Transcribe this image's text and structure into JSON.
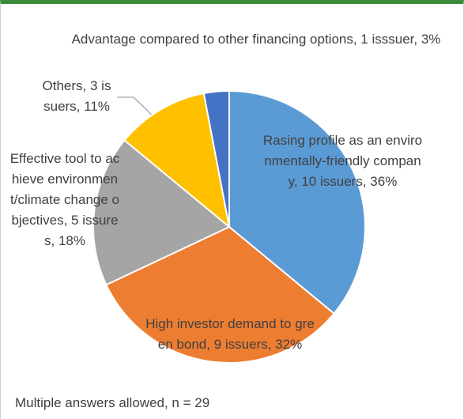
{
  "chart_data": {
    "type": "pie",
    "categories": [
      "Rasing profile as an environmentally-friendly company, 10 issuers, 36%",
      "High investor demand to green bond, 9 issuers, 32%",
      "Effective tool to achieve environment/climate change objectives, 5 issures, 18%",
      "Others, 3 issuers, 11%",
      "Advantage compared to other financing options, 1 isssuer, 3%"
    ],
    "values": [
      36,
      32,
      18,
      11,
      3
    ],
    "colors": [
      "#5b9bd5",
      "#ed7d31",
      "#a5a5a5",
      "#ffc000",
      "#4472c4"
    ],
    "note": "Multiple answers allowed, n = 29"
  }
}
